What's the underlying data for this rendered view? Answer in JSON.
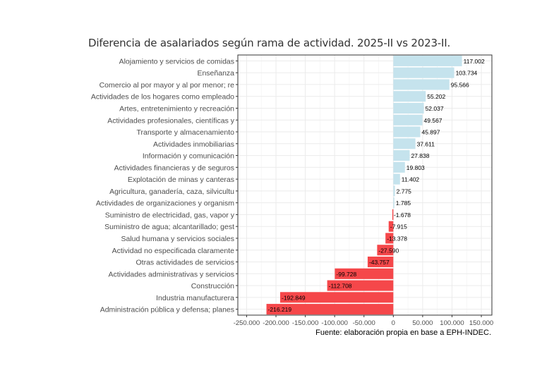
{
  "chart_data": {
    "type": "bar",
    "orientation": "horizontal",
    "title": "Diferencia de asalariados según rama de actividad. 2025-II vs 2023-II.",
    "caption": "Fuente: elaboración propia en base a EPH-INDEC.",
    "categories": [
      "Alojamiento y servicios de comidas",
      "Enseñanza",
      "Comercio al por mayor y al por menor; re",
      "Actividades de los hogares como empleado",
      "Artes, entretenimiento y recreación",
      "Actividades profesionales, científicas y",
      "Transporte y almacenamiento",
      "Actividades inmobiliarias",
      "Información y comunicación",
      "Actividades financieras y de seguros",
      "Explotación de minas y canteras",
      "Agricultura, ganadería, caza, silvicultu",
      "Actividades de organizaciones y organism",
      "Suministro de electricidad, gas, vapor y",
      "Suministro de agua; alcantarillado; gest",
      "Salud humana y servicios sociales",
      "Actividad no especificada claramente",
      "Otras actividades de servicios",
      "Actividades administrativas y servicios ",
      "Construcción",
      "Industria manufacturera",
      "Administración pública y defensa; planes"
    ],
    "values": [
      117002,
      103734,
      95566,
      55202,
      52037,
      49567,
      45897,
      37611,
      27838,
      19803,
      11402,
      2775,
      1785,
      -1678,
      -7915,
      -13378,
      -27590,
      -43757,
      -99728,
      -112708,
      -192849,
      -216219
    ],
    "data_labels": [
      "117.002",
      "103.734",
      "95.566",
      "55.202",
      "52.037",
      "49.567",
      "45.897",
      "37.611",
      "27.838",
      "19.803",
      "11.402",
      "2.775",
      "1.785",
      "-1.678",
      "-7.915",
      "-13.378",
      "-27.590",
      "-43.757",
      "-99.728",
      "-112.708",
      "-192.849",
      "-216.219"
    ],
    "xticks": [
      -250000,
      -200000,
      -150000,
      -100000,
      -50000,
      0,
      50000,
      100000,
      150000
    ],
    "xtick_labels": [
      "-250.000",
      "-200.000",
      "-150.000",
      "-100.000",
      "-50.000",
      "0",
      "50.000",
      "100.000",
      "150.000"
    ],
    "xlim": [
      -265000,
      168000
    ],
    "grid": true,
    "legend": "none",
    "colors": {
      "positive": "#c5e3ed",
      "negative": "#f5474a"
    }
  }
}
